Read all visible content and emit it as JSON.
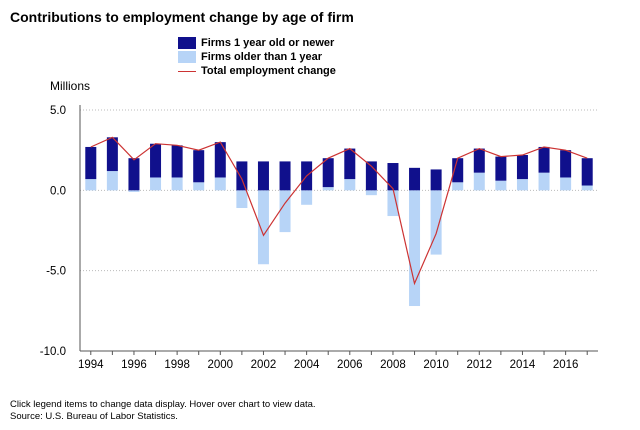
{
  "title": "Contributions to employment change by age of firm",
  "ylabel": "Millions",
  "footnote": {
    "line1": "Click legend items to change data display. Hover over chart to view data.",
    "line2": "Source: U.S. Bureau of Labor Statistics."
  },
  "colors": {
    "new_firms": "#10108c",
    "old_firms": "#b7d4f7",
    "total": "#cc3333",
    "grid": "#bbbbbb",
    "axis": "#555555"
  },
  "chart_data": {
    "type": "bar",
    "stacked": true,
    "x": [
      1994,
      1995,
      1996,
      1997,
      1998,
      1999,
      2000,
      2001,
      2002,
      2003,
      2004,
      2005,
      2006,
      2007,
      2008,
      2009,
      2010,
      2011,
      2012,
      2013,
      2014,
      2015,
      2016,
      2017
    ],
    "series": [
      {
        "name": "Firms 1 year old or newer",
        "values": [
          2.0,
          2.1,
          2.0,
          2.1,
          2.0,
          2.0,
          2.2,
          1.8,
          1.8,
          1.8,
          1.8,
          1.8,
          1.9,
          1.8,
          1.7,
          1.4,
          1.3,
          1.5,
          1.5,
          1.5,
          1.5,
          1.6,
          1.7,
          1.7
        ]
      },
      {
        "name": "Firms older than 1 year",
        "values": [
          0.7,
          1.2,
          -0.1,
          0.8,
          0.8,
          0.5,
          0.8,
          -1.1,
          -4.6,
          -2.6,
          -0.9,
          0.2,
          0.7,
          -0.3,
          -1.6,
          -7.2,
          -4.0,
          0.5,
          1.1,
          0.6,
          0.7,
          1.1,
          0.8,
          0.3
        ]
      },
      {
        "name": "Total employment change",
        "type": "line",
        "values": [
          2.7,
          3.3,
          1.9,
          2.9,
          2.8,
          2.5,
          3.0,
          0.7,
          -2.8,
          -0.8,
          0.9,
          2.0,
          2.6,
          1.5,
          0.1,
          -5.8,
          -2.7,
          2.0,
          2.6,
          2.1,
          2.2,
          2.7,
          2.5,
          2.0
        ]
      }
    ],
    "ylim": [
      -10,
      5
    ],
    "yticks": [
      "5.0",
      "0.0",
      "-5.0",
      "-10.0"
    ],
    "xticks": [
      "1994",
      "1996",
      "1998",
      "2000",
      "2002",
      "2004",
      "2006",
      "2008",
      "2010",
      "2012",
      "2014",
      "2016"
    ],
    "grid": true,
    "legend_position": "top"
  }
}
